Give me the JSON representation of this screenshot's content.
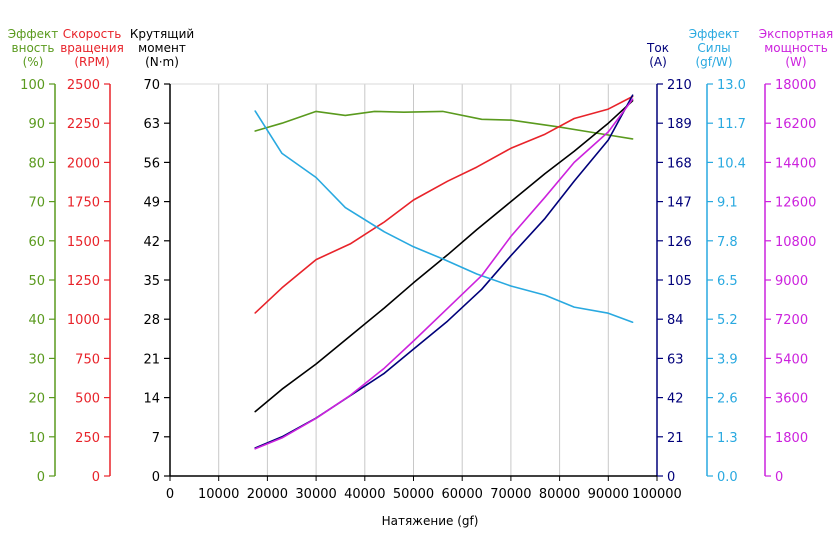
{
  "chart_data": {
    "type": "line",
    "xlabel": "Натяжение (gf)",
    "x_ticks": [
      0,
      10000,
      20000,
      30000,
      40000,
      50000,
      60000,
      70000,
      80000,
      90000,
      100000
    ],
    "xlim": [
      0,
      100000
    ],
    "grid": "vertical",
    "axes": [
      {
        "id": "eff",
        "side": "left",
        "title": [
          "Эффект",
          "вность",
          "(%)"
        ],
        "color": "#5a9a1e",
        "ticks": [
          0,
          10,
          20,
          30,
          40,
          50,
          60,
          70,
          80,
          90,
          100
        ],
        "ylim": [
          0,
          100
        ]
      },
      {
        "id": "rpm",
        "side": "left",
        "title": [
          "Скорость",
          "вращения",
          "(RPM)"
        ],
        "color": "#e8232a",
        "ticks": [
          0,
          250,
          500,
          750,
          1000,
          1250,
          1500,
          1750,
          2000,
          2250,
          2500
        ],
        "ylim": [
          0,
          2500
        ]
      },
      {
        "id": "torque",
        "side": "left",
        "title": [
          "Крутящий",
          "момент",
          "(N·m)"
        ],
        "color": "#000000",
        "ticks": [
          0,
          7,
          14,
          21,
          28,
          35,
          42,
          49,
          56,
          63,
          70
        ],
        "ylim": [
          0,
          70
        ]
      },
      {
        "id": "current",
        "side": "right",
        "title": [
          "Ток",
          "(A)"
        ],
        "color": "#00007a",
        "ticks": [
          0,
          21,
          42,
          63,
          84,
          105,
          126,
          147,
          168,
          189,
          210
        ],
        "ylim": [
          0,
          210
        ]
      },
      {
        "id": "force_eff",
        "side": "right",
        "title": [
          "Эффект",
          "Силы",
          "(gf/W)"
        ],
        "color": "#29a9e0",
        "ticks": [
          "0.0",
          "1.3",
          "2.6",
          "3.9",
          "5.2",
          "6.5",
          "7.8",
          "9.1",
          "10.4",
          "11.7",
          "13.0"
        ],
        "ylim": [
          0,
          13
        ]
      },
      {
        "id": "power",
        "side": "right",
        "title": [
          "Экспортная",
          "мощность",
          "(W)"
        ],
        "color": "#cc22dd",
        "ticks": [
          0,
          1800,
          3600,
          5400,
          7200,
          9000,
          10800,
          12600,
          14400,
          16200,
          18000
        ],
        "ylim": [
          0,
          18000
        ]
      }
    ],
    "series": [
      {
        "axis": "eff",
        "color": "#5a9a1e",
        "points": [
          [
            17500,
            88
          ],
          [
            23000,
            90
          ],
          [
            30000,
            93
          ],
          [
            36000,
            92
          ],
          [
            42000,
            93
          ],
          [
            48000,
            92.8
          ],
          [
            56000,
            93
          ],
          [
            64000,
            91
          ],
          [
            70000,
            90.8
          ],
          [
            80000,
            89
          ],
          [
            90000,
            87
          ],
          [
            95000,
            86
          ]
        ]
      },
      {
        "axis": "rpm",
        "color": "#e8232a",
        "points": [
          [
            17500,
            1040
          ],
          [
            23000,
            1200
          ],
          [
            30000,
            1380
          ],
          [
            37000,
            1480
          ],
          [
            44000,
            1620
          ],
          [
            50000,
            1760
          ],
          [
            57000,
            1880
          ],
          [
            63000,
            1970
          ],
          [
            70000,
            2090
          ],
          [
            77000,
            2180
          ],
          [
            83000,
            2280
          ],
          [
            90000,
            2340
          ],
          [
            95000,
            2420
          ]
        ]
      },
      {
        "axis": "torque",
        "color": "#000000",
        "points": [
          [
            17500,
            11.5
          ],
          [
            23000,
            15.5
          ],
          [
            30000,
            20
          ],
          [
            37000,
            25
          ],
          [
            44000,
            30
          ],
          [
            50000,
            34.5
          ],
          [
            57000,
            39.5
          ],
          [
            63000,
            44
          ],
          [
            70000,
            49
          ],
          [
            77000,
            54
          ],
          [
            83000,
            58
          ],
          [
            90000,
            63
          ],
          [
            95000,
            67
          ]
        ]
      },
      {
        "axis": "current",
        "color": "#00007a",
        "points": [
          [
            17500,
            15
          ],
          [
            23000,
            21
          ],
          [
            30000,
            31
          ],
          [
            37000,
            43
          ],
          [
            44000,
            55
          ],
          [
            50000,
            68
          ],
          [
            57000,
            83
          ],
          [
            64000,
            100
          ],
          [
            70000,
            118
          ],
          [
            77000,
            138
          ],
          [
            83000,
            158
          ],
          [
            90000,
            180
          ],
          [
            95000,
            204
          ]
        ]
      },
      {
        "axis": "force_eff",
        "color": "#29a9e0",
        "points": [
          [
            17500,
            12.1
          ],
          [
            23000,
            10.7
          ],
          [
            30000,
            9.9
          ],
          [
            36000,
            8.9
          ],
          [
            44000,
            8.1
          ],
          [
            50000,
            7.6
          ],
          [
            56000,
            7.2
          ],
          [
            63000,
            6.7
          ],
          [
            70000,
            6.3
          ],
          [
            77000,
            6.0
          ],
          [
            83000,
            5.6
          ],
          [
            90000,
            5.4
          ],
          [
            95000,
            5.1
          ]
        ]
      },
      {
        "axis": "power",
        "color": "#cc22dd",
        "points": [
          [
            17500,
            1250
          ],
          [
            23000,
            1750
          ],
          [
            30000,
            2650
          ],
          [
            37000,
            3700
          ],
          [
            44000,
            4950
          ],
          [
            50000,
            6200
          ],
          [
            57000,
            7700
          ],
          [
            64000,
            9200
          ],
          [
            70000,
            11000
          ],
          [
            77000,
            12800
          ],
          [
            83000,
            14400
          ],
          [
            90000,
            15800
          ],
          [
            95000,
            17300
          ]
        ]
      }
    ]
  }
}
